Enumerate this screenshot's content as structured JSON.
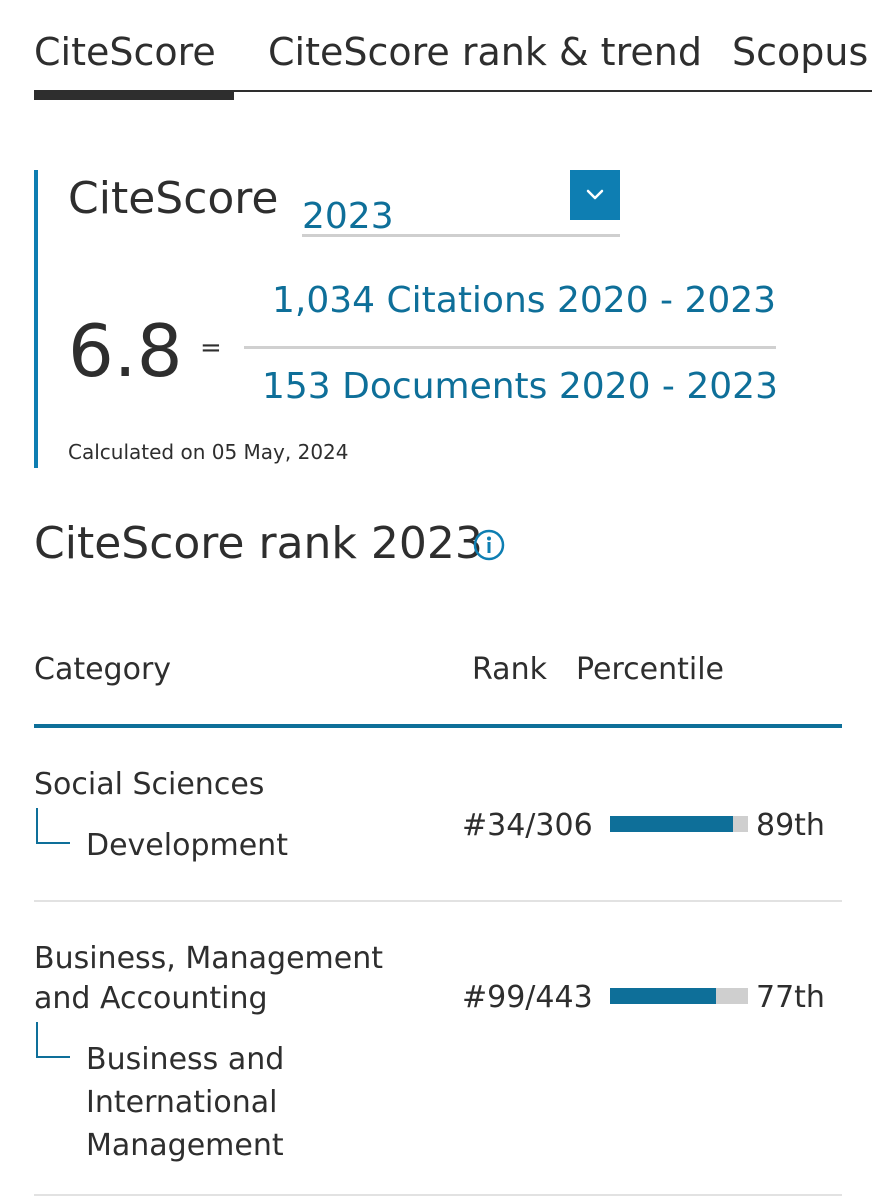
{
  "tabs": [
    {
      "label": "CiteScore",
      "active": true
    },
    {
      "label": "CiteScore rank & trend",
      "active": false
    },
    {
      "label": "Scopus c",
      "active": false
    }
  ],
  "citescore": {
    "title": "CiteScore",
    "year_selected": "2023",
    "value": "6.8",
    "equals": "=",
    "numerator": "1,034 Citations 2020 - 2023",
    "denominator": "153 Documents 2020 - 2023",
    "calculated": "Calculated on 05 May, 2024",
    "accent_color": "#0e7eb2",
    "link_color": "#0e6f99",
    "dropdown_icon": "chevron-down-icon"
  },
  "rank": {
    "title": "CiteScore rank 2023",
    "info_icon": "info-icon",
    "columns": {
      "category": "Category",
      "rank": "Rank",
      "percentile": "Percentile"
    },
    "rows": [
      {
        "category": "Social Sciences",
        "subcategory": "Development",
        "rank": "#34/306",
        "percentile_label": "89th",
        "percentile": 89
      },
      {
        "category_line1": "Business, Management",
        "category_line2": "and Accounting",
        "subcategory_line1": "Business and",
        "subcategory_line2": "International",
        "subcategory_line3": "Management",
        "rank": "#99/443",
        "percentile_label": "77th",
        "percentile": 77
      }
    ],
    "bar_fill_color": "#0e6f99",
    "bar_track_color": "#cfcfcf"
  }
}
